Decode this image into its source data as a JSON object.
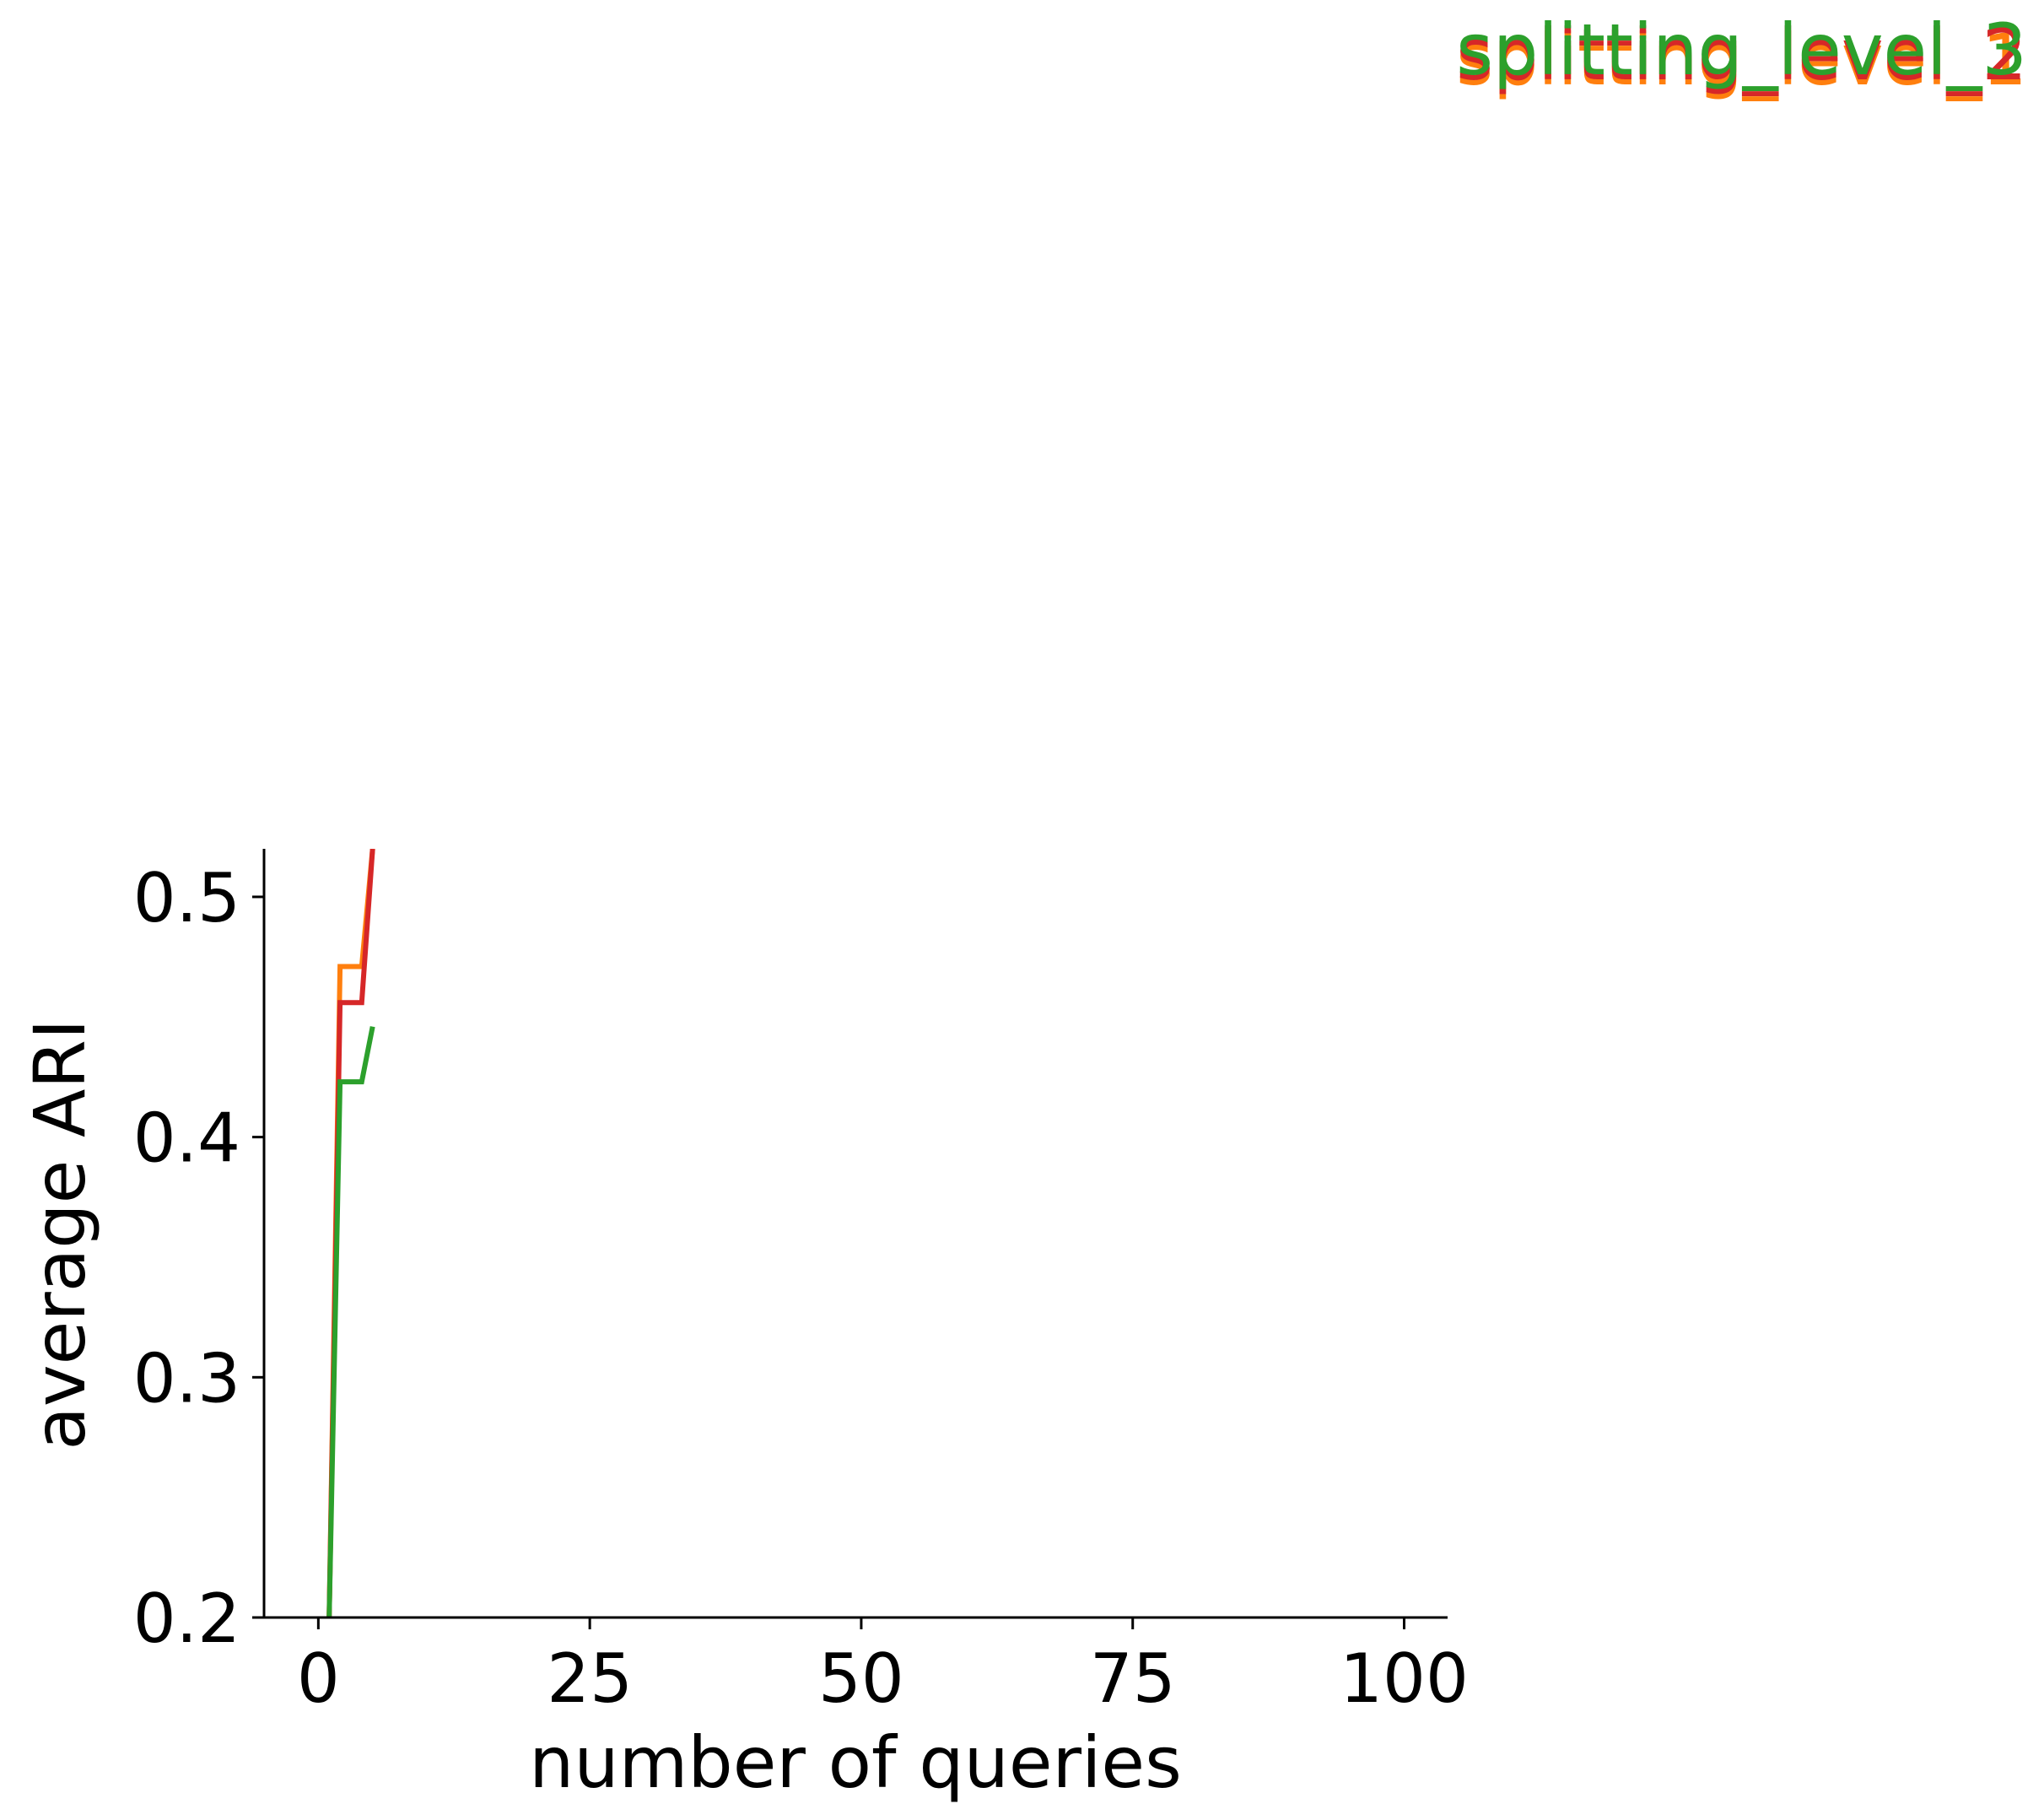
{
  "chart_data": {
    "type": "line",
    "title": "",
    "xlabel": "number of queries",
    "ylabel": "average ARI",
    "xlim": [
      -5,
      104
    ],
    "ylim": [
      0.2,
      0.52
    ],
    "x_ticks": [
      "0",
      "25",
      "50",
      "75",
      "100"
    ],
    "y_ticks": [
      "0.2",
      "0.3",
      "0.4",
      "0.5"
    ],
    "grid": false,
    "legend_placement": "top-right",
    "series": [
      {
        "name": "splitting_level_1",
        "color": "#ff7f0e",
        "x": [
          1,
          2,
          3,
          4,
          5
        ],
        "y": [
          0.2,
          0.471,
          0.471,
          0.471,
          0.52
        ]
      },
      {
        "name": "splitting_level_2",
        "color": "#d62728",
        "x": [
          1,
          2,
          3,
          4,
          5
        ],
        "y": [
          0.2,
          0.456,
          0.456,
          0.456,
          0.52
        ]
      },
      {
        "name": "splitting_level_3",
        "color": "#2ca02c",
        "x": [
          1,
          2,
          3,
          4,
          5
        ],
        "y": [
          0.2,
          0.423,
          0.423,
          0.423,
          0.446
        ]
      }
    ]
  }
}
